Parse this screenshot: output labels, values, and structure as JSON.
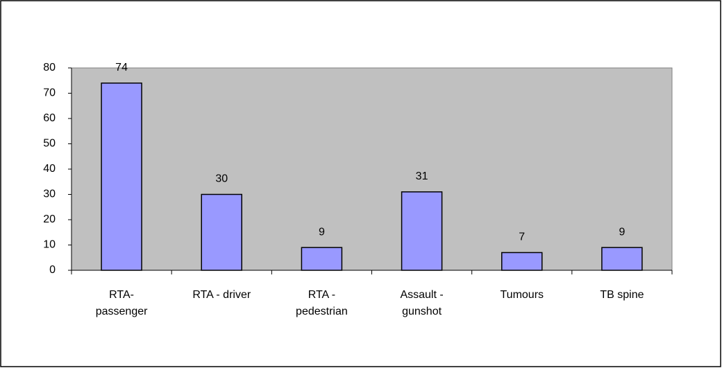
{
  "chart_data": {
    "type": "bar",
    "categories": [
      "RTA- passenger",
      "RTA - driver",
      "RTA - pedestrian",
      "Assault - gunshot",
      "Tumours",
      "TB spine"
    ],
    "values": [
      74,
      30,
      9,
      31,
      7,
      9
    ],
    "color": "#9999ff",
    "ylim": [
      0,
      80
    ],
    "yticks": [
      0,
      10,
      20,
      30,
      40,
      50,
      60,
      70,
      80
    ],
    "grid": false
  }
}
